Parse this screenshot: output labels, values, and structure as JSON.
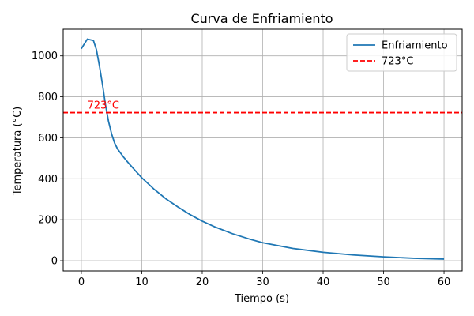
{
  "chart_data": {
    "type": "line",
    "title": "Curva de Enfriamiento",
    "xlabel": "Tiempo (s)",
    "ylabel": "Temperatura (°C)",
    "xlim": [
      -3,
      63
    ],
    "ylim": [
      -50,
      1130
    ],
    "xticks": [
      0,
      10,
      20,
      30,
      40,
      50,
      60
    ],
    "yticks": [
      0,
      200,
      400,
      600,
      800,
      1000
    ],
    "grid": true,
    "legend_position": "top-right",
    "series": [
      {
        "name": "Enfriamiento",
        "color": "#1f77b4",
        "style": "solid",
        "x": [
          0,
          1,
          2,
          2.5,
          3,
          3.5,
          4,
          4.5,
          5,
          5.5,
          6,
          6.5,
          7,
          8,
          9,
          10,
          12,
          14,
          16,
          18,
          20,
          22,
          25,
          28,
          30,
          35,
          40,
          45,
          50,
          55,
          60
        ],
        "y": [
          1035,
          1082,
          1075,
          1030,
          950,
          860,
          760,
          680,
          620,
          575,
          545,
          525,
          505,
          470,
          437,
          405,
          350,
          302,
          262,
          225,
          193,
          166,
          132,
          104,
          88,
          60,
          41,
          28,
          19,
          12,
          8
        ]
      },
      {
        "name": "723°C",
        "color": "#ff0000",
        "style": "dashed",
        "constant_y": 723
      }
    ],
    "annotations": [
      {
        "text": "723°C",
        "x": 1,
        "y": 723,
        "color": "#ff0000"
      }
    ]
  }
}
